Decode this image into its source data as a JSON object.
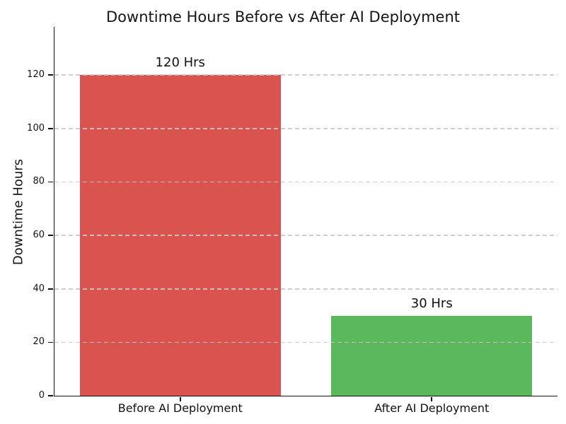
{
  "figure": {
    "background_color": "#ffffff",
    "text_color": "#111111",
    "spine_color": "#111111"
  },
  "chart_data": {
    "type": "bar",
    "title": "Downtime Hours Before vs After AI Deployment",
    "categories": [
      "Before AI Deployment",
      "After AI Deployment"
    ],
    "values": [
      120,
      30
    ],
    "bar_labels": [
      "120 Hrs",
      "30 Hrs"
    ],
    "bar_colors": [
      "#d9534f",
      "#5cb85c"
    ],
    "xlabel": "",
    "ylabel": "Downtime Hours",
    "ylim": [
      0,
      138
    ],
    "yticks": [
      0,
      20,
      40,
      60,
      80,
      100,
      120
    ],
    "bar_width_fraction": 0.8,
    "grid": {
      "axis": "y",
      "style": "dashed",
      "color": "#c9c9c9",
      "drawn_over_bars": true
    },
    "legend": "none"
  }
}
